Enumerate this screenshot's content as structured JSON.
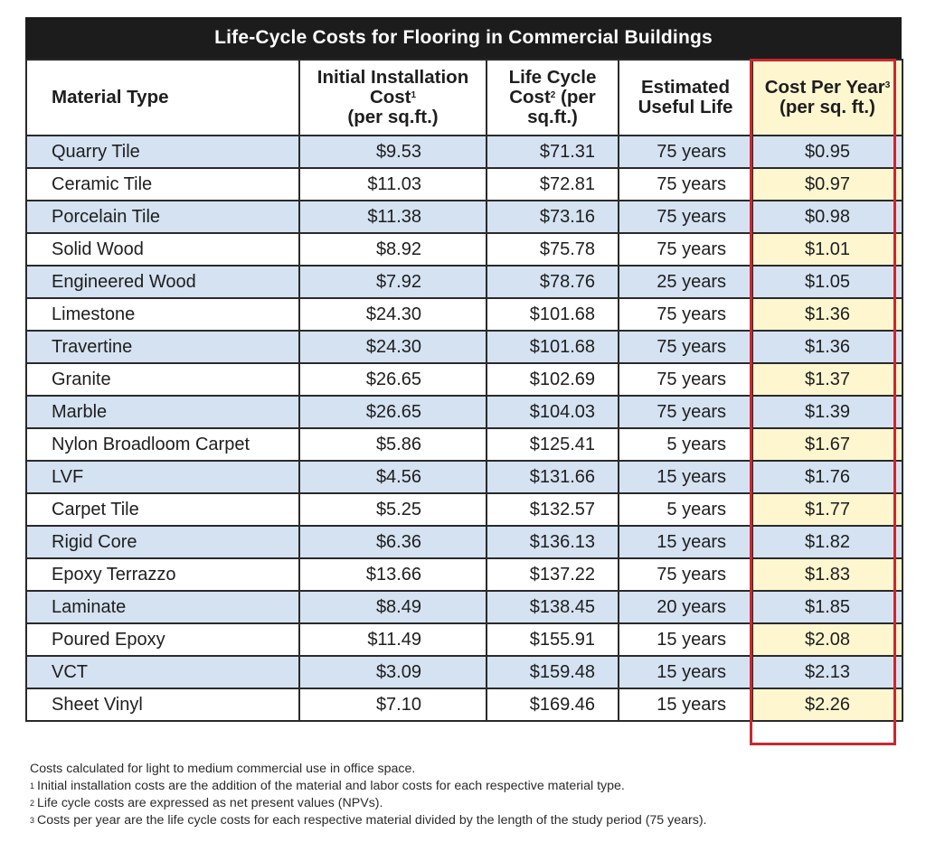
{
  "title": "Life-Cycle Costs for Flooring in Commercial Buildings",
  "headers": {
    "material": "Material Type",
    "initial": "Initial Installation Cost",
    "initial_sup": "1",
    "initial_unit": "(per sq.ft.)",
    "lifecycle_a": "Life Cycle Cost",
    "lifecycle_sup": "2",
    "lifecycle_b": "(per sq.ft.)",
    "life": "Estimated Useful Life",
    "cpy": "Cost Per Year",
    "cpy_sup": "3",
    "cpy_unit": "(per sq. ft.)"
  },
  "rows": [
    {
      "material": "Quarry Tile",
      "initial": "$9.53",
      "lifecycle": "$71.31",
      "life": "75 years",
      "cpy": "$0.95"
    },
    {
      "material": "Ceramic Tile",
      "initial": "$11.03",
      "lifecycle": "$72.81",
      "life": "75 years",
      "cpy": "$0.97"
    },
    {
      "material": "Porcelain Tile",
      "initial": "$11.38",
      "lifecycle": "$73.16",
      "life": "75 years",
      "cpy": "$0.98"
    },
    {
      "material": "Solid Wood",
      "initial": "$8.92",
      "lifecycle": "$75.78",
      "life": "75 years",
      "cpy": "$1.01"
    },
    {
      "material": "Engineered Wood",
      "initial": "$7.92",
      "lifecycle": "$78.76",
      "life": "25 years",
      "cpy": "$1.05"
    },
    {
      "material": "Limestone",
      "initial": "$24.30",
      "lifecycle": "$101.68",
      "life": "75 years",
      "cpy": "$1.36"
    },
    {
      "material": "Travertine",
      "initial": "$24.30",
      "lifecycle": "$101.68",
      "life": "75 years",
      "cpy": "$1.36"
    },
    {
      "material": "Granite",
      "initial": "$26.65",
      "lifecycle": "$102.69",
      "life": "75 years",
      "cpy": "$1.37"
    },
    {
      "material": "Marble",
      "initial": "$26.65",
      "lifecycle": "$104.03",
      "life": "75 years",
      "cpy": "$1.39"
    },
    {
      "material": "Nylon Broadloom Carpet",
      "initial": "$5.86",
      "lifecycle": "$125.41",
      "life": "5 years",
      "cpy": "$1.67"
    },
    {
      "material": "LVF",
      "initial": "$4.56",
      "lifecycle": "$131.66",
      "life": "15 years",
      "cpy": "$1.76"
    },
    {
      "material": "Carpet Tile",
      "initial": "$5.25",
      "lifecycle": "$132.57",
      "life": "5 years",
      "cpy": "$1.77"
    },
    {
      "material": "Rigid Core",
      "initial": "$6.36",
      "lifecycle": "$136.13",
      "life": "15 years",
      "cpy": "$1.82"
    },
    {
      "material": "Epoxy Terrazzo",
      "initial": "$13.66",
      "lifecycle": "$137.22",
      "life": "75 years",
      "cpy": "$1.83"
    },
    {
      "material": "Laminate",
      "initial": "$8.49",
      "lifecycle": "$138.45",
      "life": "20 years",
      "cpy": "$1.85"
    },
    {
      "material": "Poured Epoxy",
      "initial": "$11.49",
      "lifecycle": "$155.91",
      "life": "15 years",
      "cpy": "$2.08"
    },
    {
      "material": "VCT",
      "initial": "$3.09",
      "lifecycle": "$159.48",
      "life": "15 years",
      "cpy": "$2.13"
    },
    {
      "material": "Sheet Vinyl",
      "initial": "$7.10",
      "lifecycle": "$169.46",
      "life": "15 years",
      "cpy": "$2.26"
    }
  ],
  "notes": {
    "general": "Costs calculated for light to medium commercial use in office space.",
    "fn1_mark": "1",
    "fn1": "Initial installation costs are the addition of the material and labor costs for each respective material type.",
    "fn2_mark": "2",
    "fn2": "Life cycle costs are expressed as net present values (NPVs).",
    "fn3_mark": "3",
    "fn3": "Costs per year are the life cycle costs for each respective material divided by the length of the study period (75 years)."
  },
  "colors": {
    "title_bg": "#1c1c1c",
    "row_shade": "#d4e2f1",
    "highlight_fill": "#fdf6cf",
    "highlight_border": "#c8282f"
  }
}
